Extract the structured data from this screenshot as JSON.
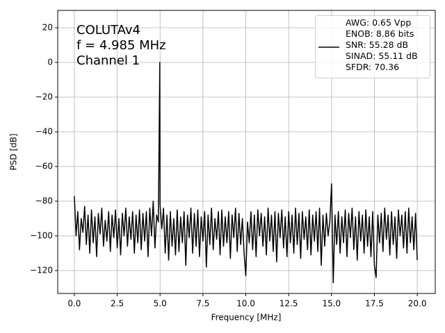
{
  "chart_data": {
    "type": "line",
    "annotation": [
      "COLUTAv4",
      "f = 4.985 MHz",
      "Channel 1"
    ],
    "xlabel": "Frequency [MHz]",
    "ylabel": "PSD [dB]",
    "x": [
      0,
      0.1,
      0.2,
      0.3,
      0.4,
      0.5,
      0.6,
      0.7,
      0.8,
      0.9,
      1.0,
      1.1,
      1.2,
      1.3,
      1.4,
      1.5,
      1.6,
      1.7,
      1.8,
      1.9,
      2.0,
      2.1,
      2.2,
      2.3,
      2.4,
      2.5,
      2.6,
      2.7,
      2.8,
      2.9,
      3.0,
      3.1,
      3.2,
      3.3,
      3.4,
      3.5,
      3.6,
      3.7,
      3.8,
      3.9,
      4.0,
      4.1,
      4.2,
      4.3,
      4.4,
      4.5,
      4.6,
      4.7,
      4.8,
      4.9,
      4.985,
      5.0,
      5.1,
      5.2,
      5.3,
      5.4,
      5.5,
      5.6,
      5.7,
      5.8,
      5.9,
      6.0,
      6.1,
      6.2,
      6.3,
      6.4,
      6.5,
      6.6,
      6.7,
      6.8,
      6.9,
      7.0,
      7.1,
      7.2,
      7.3,
      7.4,
      7.5,
      7.6,
      7.7,
      7.8,
      7.9,
      8.0,
      8.1,
      8.2,
      8.3,
      8.4,
      8.5,
      8.6,
      8.7,
      8.8,
      8.9,
      9.0,
      9.1,
      9.2,
      9.3,
      9.4,
      9.5,
      9.6,
      9.7,
      9.8,
      9.9,
      10.0,
      10.1,
      10.2,
      10.3,
      10.4,
      10.5,
      10.6,
      10.7,
      10.8,
      10.9,
      11.0,
      11.1,
      11.2,
      11.3,
      11.4,
      11.5,
      11.6,
      11.7,
      11.8,
      11.9,
      12.0,
      12.1,
      12.2,
      12.3,
      12.4,
      12.5,
      12.6,
      12.7,
      12.8,
      12.9,
      13.0,
      13.1,
      13.2,
      13.3,
      13.4,
      13.5,
      13.6,
      13.7,
      13.8,
      13.9,
      14.0,
      14.1,
      14.2,
      14.3,
      14.4,
      14.5,
      14.6,
      14.7,
      14.8,
      14.9,
      15.0,
      15.1,
      15.2,
      15.3,
      15.4,
      15.5,
      15.6,
      15.7,
      15.8,
      15.9,
      16.0,
      16.1,
      16.2,
      16.3,
      16.4,
      16.5,
      16.6,
      16.7,
      16.8,
      16.9,
      17.0,
      17.1,
      17.2,
      17.3,
      17.4,
      17.5,
      17.6,
      17.7,
      17.8,
      17.9,
      18.0,
      18.1,
      18.2,
      18.3,
      18.4,
      18.5,
      18.6,
      18.7,
      18.8,
      18.9,
      19.0,
      19.1,
      19.2,
      19.3,
      19.4,
      19.5,
      19.6,
      19.7,
      19.8,
      19.9,
      20.0
    ],
    "series": [
      {
        "name": "AWG: 0.65 Vpp\nENOB: 8.86 bits\nSNR: 55.28 dB\nSINAD: 55.11 dB\nSFDR: 70.36",
        "color": "#000000",
        "values": [
          -77,
          -100,
          -86,
          -108,
          -90,
          -98,
          -83,
          -105,
          -88,
          -110,
          -85,
          -104,
          -89,
          -112,
          -87,
          -99,
          -84,
          -106,
          -91,
          -103,
          -86,
          -109,
          -88,
          -101,
          -85,
          -107,
          -90,
          -111,
          -87,
          -100,
          -84,
          -106,
          -89,
          -102,
          -86,
          -110,
          -88,
          -104,
          -85,
          -108,
          -87,
          -103,
          -86,
          -112,
          -84,
          -100,
          -80,
          -107,
          -88,
          -92,
          0,
          -82,
          -96,
          -84,
          -110,
          -88,
          -114,
          -86,
          -106,
          -90,
          -111,
          -85,
          -109,
          -89,
          -104,
          -86,
          -117,
          -88,
          -101,
          -84,
          -110,
          -87,
          -106,
          -85,
          -112,
          -89,
          -103,
          -86,
          -118,
          -88,
          -105,
          -84,
          -108,
          -90,
          -102,
          -86,
          -111,
          -85,
          -106,
          -89,
          -104,
          -86,
          -113,
          -88,
          -101,
          -84,
          -109,
          -87,
          -105,
          -90,
          -110,
          -123,
          -92,
          -104,
          -86,
          -108,
          -88,
          -112,
          -85,
          -100,
          -87,
          -106,
          -89,
          -111,
          -84,
          -103,
          -88,
          -109,
          -86,
          -115,
          -87,
          -101,
          -85,
          -107,
          -89,
          -112,
          -86,
          -104,
          -88,
          -110,
          -84,
          -105,
          -87,
          -113,
          -86,
          -102,
          -89,
          -108,
          -85,
          -111,
          -88,
          -103,
          -86,
          -109,
          -84,
          -117,
          -88,
          -106,
          -87,
          -100,
          -92,
          -70,
          -127,
          -88,
          -105,
          -86,
          -110,
          -89,
          -104,
          -85,
          -112,
          -87,
          -101,
          -84,
          -108,
          -89,
          -114,
          -86,
          -103,
          -88,
          -110,
          -85,
          -106,
          -89,
          -112,
          -86,
          -117,
          -124,
          -88,
          -104,
          -87,
          -109,
          -84,
          -102,
          -88,
          -111,
          -86,
          -105,
          -89,
          -113,
          -85,
          -100,
          -88,
          -107,
          -86,
          -110,
          -84,
          -104,
          -89,
          -108,
          -87,
          -114
        ]
      }
    ],
    "xlim": [
      -0.97,
      21.05
    ],
    "ylim": [
      -133.2,
      30
    ],
    "xticks": [
      {
        "value": 0,
        "label": "0.0"
      },
      2.5,
      {
        "value": 5,
        "label": "5.0"
      },
      7.5,
      {
        "value": 10,
        "label": "10.0"
      },
      12.5,
      {
        "value": 15,
        "label": "15.0"
      },
      17.5,
      {
        "value": 20,
        "label": "20.0"
      }
    ],
    "yticks": [
      {
        "value": -120,
        "label": "−120"
      },
      {
        "value": -100,
        "label": "−100"
      },
      {
        "value": -80,
        "label": "−80"
      },
      {
        "value": -60,
        "label": "−60"
      },
      {
        "value": -40,
        "label": "−40"
      },
      {
        "value": -20,
        "label": "−20"
      },
      0,
      20
    ],
    "grid": true,
    "legend": "upper right"
  }
}
